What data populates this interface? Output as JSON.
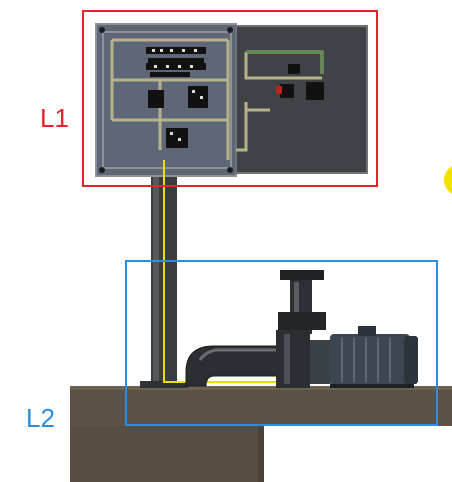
{
  "callouts": [
    {
      "label": "L1",
      "color": "#e8202a"
    },
    {
      "label": "L2",
      "color": "#2a8de0"
    }
  ],
  "colors": {
    "cabinet_body": "#5f6677",
    "cabinet_frame": "#a9abaf",
    "cabinet_dark": "#3e4246",
    "ground": "#5a5144",
    "wiring": "#c9c06a",
    "cable": "#e8e000",
    "pump_body": "#2c3034",
    "motor": "#3a4450",
    "indicator": "#f2e200"
  }
}
